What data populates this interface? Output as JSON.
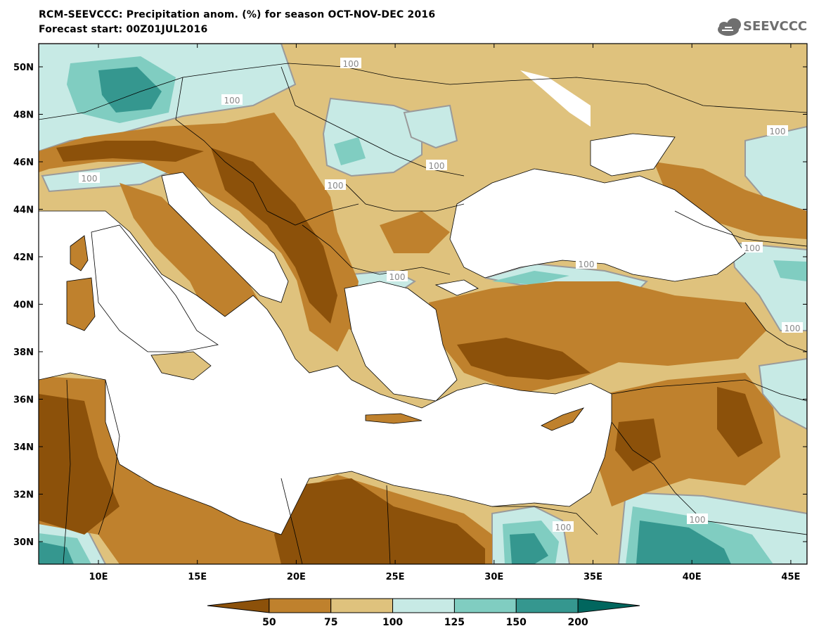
{
  "header": {
    "title": "RCM-SEEVCCC: Precipitation anom. (%) for season OCT-NOV-DEC 2016",
    "subtitle": "Forecast start: 00Z01JUL2016",
    "logo_text": "SEEVCCC"
  },
  "map": {
    "lon_labels": [
      "10E",
      "15E",
      "20E",
      "25E",
      "30E",
      "35E",
      "40E",
      "45E"
    ],
    "lat_labels": [
      "50N",
      "48N",
      "46N",
      "44N",
      "42N",
      "40N",
      "38N",
      "36N",
      "34N",
      "32N",
      "30N"
    ],
    "contour_label": "100"
  },
  "colorbar": {
    "labels": [
      "50",
      "75",
      "100",
      "125",
      "150",
      "200"
    ],
    "colors": [
      "#8c510a",
      "#bf812d",
      "#dfc27d",
      "#c7eae5",
      "#80cdc1",
      "#35978f",
      "#01665e"
    ]
  }
}
